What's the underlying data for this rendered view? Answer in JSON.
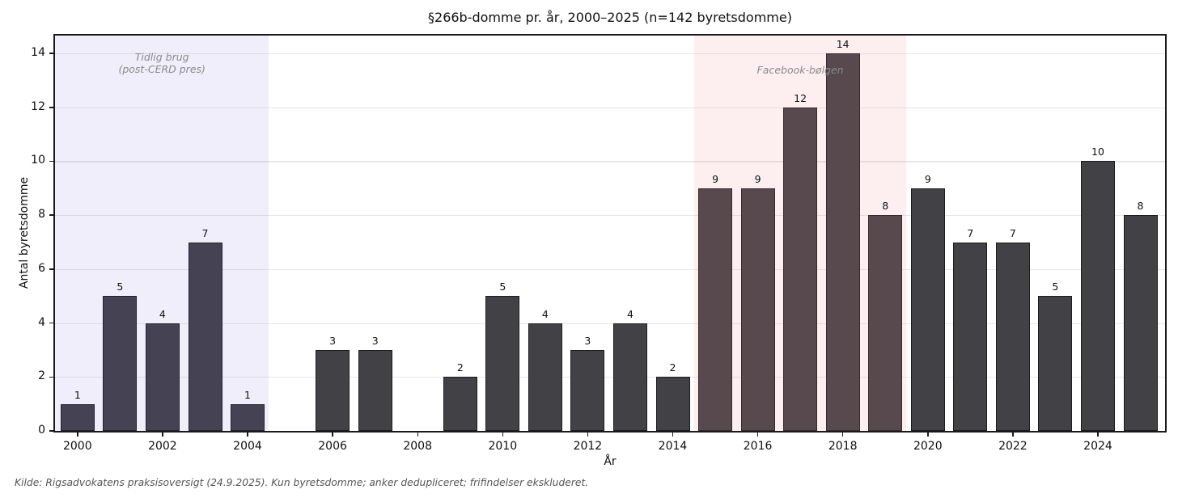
{
  "chart_data": {
    "type": "bar",
    "title": "§266b-domme pr. år, 2000–2025 (n=142 byretsdomme)",
    "xlabel": "År",
    "ylabel": "Antal byretsdomme",
    "categories": [
      2000,
      2001,
      2002,
      2003,
      2004,
      2005,
      2006,
      2007,
      2008,
      2009,
      2010,
      2011,
      2012,
      2013,
      2014,
      2015,
      2016,
      2017,
      2018,
      2019,
      2020,
      2021,
      2022,
      2023,
      2024,
      2025
    ],
    "values": [
      1,
      5,
      4,
      7,
      1,
      0,
      3,
      3,
      0,
      2,
      5,
      4,
      3,
      4,
      2,
      9,
      9,
      12,
      14,
      8,
      9,
      7,
      7,
      5,
      10,
      8
    ],
    "total_label": "n=142",
    "ylim": [
      0,
      14.72
    ],
    "yticks": [
      0,
      2,
      4,
      6,
      8,
      10,
      12,
      14
    ],
    "xticks": [
      2000,
      2002,
      2004,
      2006,
      2008,
      2010,
      2012,
      2014,
      2016,
      2018,
      2020,
      2022,
      2024
    ],
    "xlim": [
      1999.47,
      2025.58
    ],
    "grid": true,
    "bar_width": 0.8,
    "bar_color": "#414146",
    "bar_edge_color": "#1c1c20",
    "grid_color": "#e7e7e7",
    "bands": [
      {
        "name": "tidlig-brug",
        "label_lines": [
          "Tidlig brug",
          "(post-CERD pres)"
        ],
        "x_start": 1999.47,
        "x_end": 2004.5,
        "fill": "rgba(106,90,205,0.10)",
        "label_color": "#8a8a8a"
      },
      {
        "name": "facebook-boelgen",
        "label_lines": [
          "Facebook-bølgen"
        ],
        "x_start": 2014.5,
        "x_end": 2019.5,
        "fill": "rgba(240,128,128,0.13)",
        "label_color": "#8a8a8a"
      }
    ],
    "source_note": "Kilde: Rigsadvokatens praksisoversigt (24.9.2025). Kun byretsdomme; anker dedupliceret; frifindelser ekskluderet."
  }
}
